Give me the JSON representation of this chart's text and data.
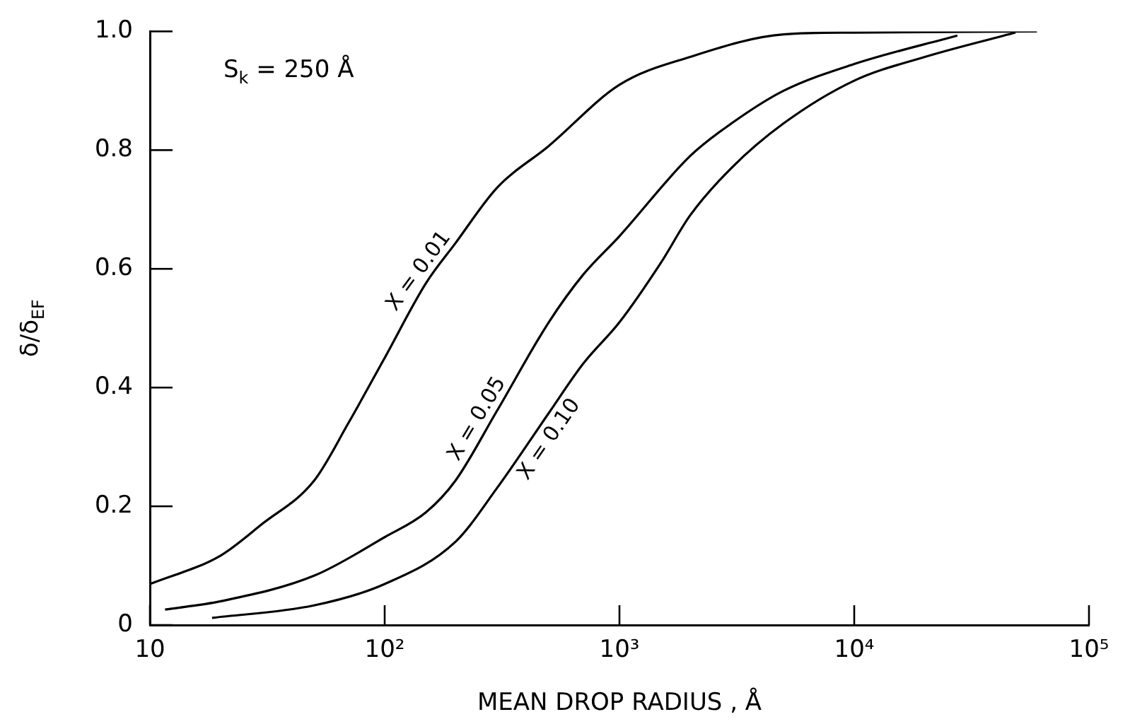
{
  "chart_data": {
    "type": "line",
    "xlabel": "MEAN DROP RADIUS , Å",
    "ylabel": "δ/δ$_{EF}$",
    "log": "x",
    "xlim": [
      10,
      100000
    ],
    "xticks": [
      10,
      {
        "value": 100,
        "label": "10²"
      },
      {
        "value": 1000,
        "label": "10³"
      },
      {
        "value": 10000,
        "label": "10⁴"
      },
      {
        "value": 100000,
        "label": "10⁵"
      }
    ],
    "ylim": [
      0,
      1
    ],
    "yticks": [
      0,
      0.2,
      0.4,
      0.6,
      0.8,
      {
        "value": 1,
        "label": "1.0"
      }
    ],
    "series": [
      {
        "name": "X = 0.01",
        "color": "#000000",
        "x": [
          10,
          20,
          30,
          50,
          70,
          100,
          150,
          200,
          300,
          500,
          1000,
          2000,
          5000,
          10000,
          60000
        ],
        "values": [
          0.069,
          0.117,
          0.17,
          0.243,
          0.34,
          0.45,
          0.576,
          0.643,
          0.736,
          0.807,
          0.91,
          0.957,
          0.995,
          0.998,
          1.0
        ]
      },
      {
        "name": "X = 0.05",
        "color": "#000000",
        "x": [
          11.6,
          20,
          50,
          100,
          150,
          200,
          300,
          500,
          700,
          1000,
          2000,
          3000,
          5000,
          10000,
          27500
        ],
        "values": [
          0.026,
          0.04,
          0.083,
          0.148,
          0.19,
          0.243,
          0.36,
          0.51,
          0.59,
          0.655,
          0.79,
          0.845,
          0.9,
          0.945,
          0.993
        ]
      },
      {
        "name": "X = 0.10",
        "color": "#000000",
        "x": [
          18.4,
          50,
          100,
          200,
          300,
          500,
          700,
          1000,
          1500,
          2000,
          3000,
          5000,
          10000,
          20000,
          48600
        ],
        "values": [
          0.012,
          0.033,
          0.069,
          0.14,
          0.23,
          0.357,
          0.44,
          0.51,
          0.61,
          0.69,
          0.77,
          0.845,
          0.917,
          0.957,
          0.998
        ]
      }
    ],
    "annotations": [
      "S$_{k}$ = 250 Å"
    ]
  }
}
